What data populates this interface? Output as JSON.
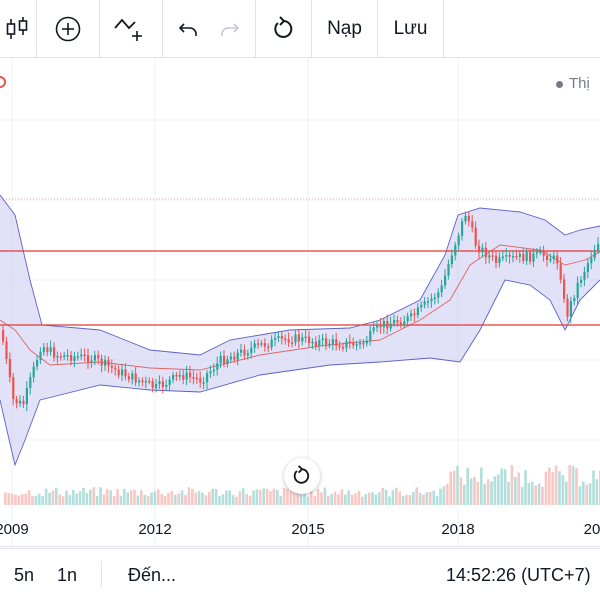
{
  "toolbar": {
    "candles_icon": "candlestick-icon",
    "add_icon": "plus-circle-icon",
    "indicator_icon": "indicator-icon",
    "undo_icon": "undo-icon",
    "redo_icon": "redo-icon",
    "reload_icon": "reload-icon",
    "load_label": "Nạp",
    "save_label": "Lưu"
  },
  "legend": {
    "text": "Thị"
  },
  "bottom_bar": {
    "range_5y": "5n",
    "range_1y": "1n",
    "goto_label": "Đến...",
    "clock": "14:52:26 (UTC+7)"
  },
  "colors": {
    "up": "#26a69a",
    "down": "#ef5350",
    "band_fill": "#c9cbf2",
    "band_line": "#5d60c9",
    "hline": "#e53935",
    "grid": "#edf0f4"
  },
  "chart_data": {
    "type": "candlestick",
    "x_tick_labels": [
      "2009",
      "2012",
      "2015",
      "2018",
      "20"
    ],
    "horizontal_levels": 2,
    "indicator": "bollinger-bands",
    "legend_placement": "top-right",
    "grid": true
  }
}
